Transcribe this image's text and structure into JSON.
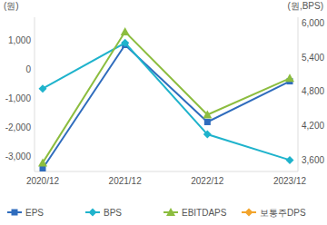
{
  "chart_data": {
    "type": "line",
    "y_label": "(원)",
    "y2_label": "(원,BPS)",
    "categories": [
      "2020/12",
      "2021/12",
      "2022/12",
      "2023/12"
    ],
    "series": [
      {
        "name": "EPS",
        "color": "#2f6cbd",
        "marker": "square",
        "values": [
          -3400,
          850,
          -1800,
          -400
        ]
      },
      {
        "name": "BPS",
        "color": "#1fb3cc",
        "marker": "diamond",
        "axis": "y2",
        "values": [
          4850,
          5650,
          4050,
          3600
        ]
      },
      {
        "name": "EBITDAPS",
        "color": "#8cbd3f",
        "marker": "triangle",
        "values": [
          -3200,
          1300,
          -1550,
          -300
        ]
      },
      {
        "name": "보통주DPS",
        "color": "#f2a42c",
        "marker": "diamond",
        "values": [
          null,
          null,
          null,
          null
        ]
      }
    ],
    "ylim": [
      -3500,
      1800
    ],
    "yticks": [
      {
        "value": 1000,
        "label": "1,000"
      },
      0,
      {
        "value": -1000,
        "label": "-1,000"
      },
      {
        "value": -2000,
        "label": "-2,000"
      },
      {
        "value": -3000,
        "label": "-3,000"
      }
    ],
    "y2lim": [
      3400,
      6100
    ],
    "y2ticks": [
      {
        "value": 6000,
        "label": "6,000"
      },
      {
        "value": 5400,
        "label": "5,400"
      },
      {
        "value": 4800,
        "label": "4,800"
      },
      {
        "value": 4200,
        "label": "4,200"
      },
      {
        "value": 3600,
        "label": "3,600"
      }
    ],
    "grid": false,
    "legend": "bottom"
  }
}
